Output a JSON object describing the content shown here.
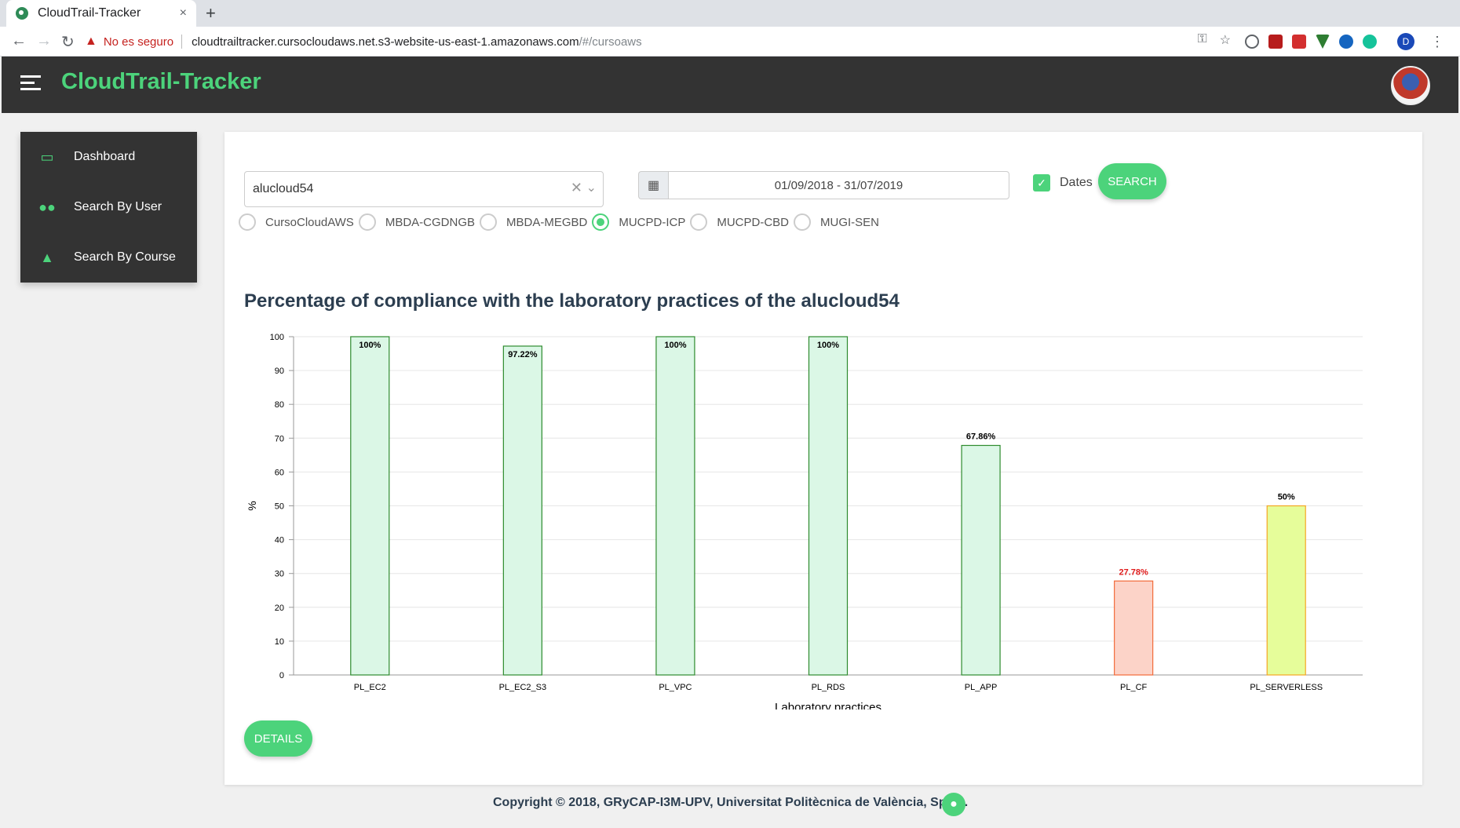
{
  "browser": {
    "tab_title": "CloudTrail-Tracker",
    "tab_close": "×",
    "new_tab": "+",
    "insecure_label": "No es seguro",
    "url_host": "cloudtrailtracker.cursocloudaws.net.s3-website-us-east-1.amazonaws.com",
    "url_path": "/#/cursoaws",
    "profile_initial": "D"
  },
  "header": {
    "brand": "CloudTrail-Tracker"
  },
  "sidebar": {
    "items": [
      {
        "label": "Dashboard",
        "icon": "monitor-icon"
      },
      {
        "label": "Search By User",
        "icon": "users-icon"
      },
      {
        "label": "Search By Course",
        "icon": "graduation-cap-icon"
      }
    ]
  },
  "search": {
    "user_value": "alucloud54",
    "date_range": "01/09/2018 - 31/07/2019",
    "dates_label": "Dates",
    "dates_checked": true,
    "search_button": "SEARCH"
  },
  "courses": [
    {
      "label": "CursoCloudAWS",
      "selected": false
    },
    {
      "label": "MBDA-CGDNGB",
      "selected": false
    },
    {
      "label": "MBDA-MEGBD",
      "selected": false
    },
    {
      "label": "MUCPD-ICP",
      "selected": true
    },
    {
      "label": "MUCPD-CBD",
      "selected": false
    },
    {
      "label": "MUGI-SEN",
      "selected": false
    }
  ],
  "chart_title": "Percentage of compliance with the laboratory practices of the alucloud54",
  "chart_data": {
    "type": "bar",
    "categories": [
      "PL_EC2",
      "PL_EC2_S3",
      "PL_VPC",
      "PL_RDS",
      "PL_APP",
      "PL_CF",
      "PL_SERVERLESS"
    ],
    "values": [
      100,
      97.22,
      100,
      100,
      67.86,
      27.78,
      50
    ],
    "data_labels": [
      "100%",
      "97.22%",
      "100%",
      "100%",
      "67.86%",
      "27.78%",
      "50%"
    ],
    "bar_fills": [
      "#dbf7e6",
      "#dbf7e6",
      "#dbf7e6",
      "#dbf7e6",
      "#dbf7e6",
      "#fcd3c8",
      "#e6fd9a"
    ],
    "bar_strokes": [
      "#2e8b2e",
      "#2e8b2e",
      "#2e8b2e",
      "#2e8b2e",
      "#2e8b2e",
      "#f26b3a",
      "#f5a623"
    ],
    "label_colors": [
      "#000000",
      "#000000",
      "#000000",
      "#000000",
      "#000000",
      "#e01b1b",
      "#000000"
    ],
    "xlabel": "Laboratory practices",
    "ylabel": "%",
    "ylim": [
      0,
      100
    ],
    "yticks": [
      0,
      10,
      20,
      30,
      40,
      50,
      60,
      70,
      80,
      90,
      100
    ],
    "grid": true
  },
  "details_button": "DETAILS",
  "footer": {
    "copyright": "Copyright © 2018, GRyCAP-I3M-UPV, Universitat Politècnica de València, Spain."
  }
}
